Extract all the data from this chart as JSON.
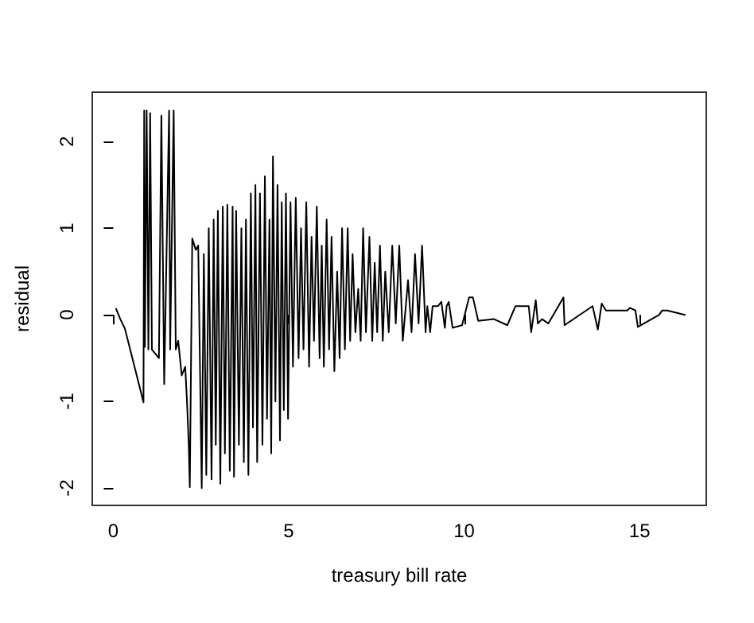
{
  "chart_data": {
    "type": "line",
    "xlabel": "treasury bill rate",
    "ylabel": "residual",
    "xlim": [
      -0.6,
      16.9
    ],
    "ylim": [
      -2.2,
      2.57
    ],
    "xticks": [
      0,
      5,
      10,
      15
    ],
    "yticks": [
      -2,
      -1,
      0,
      1,
      2
    ],
    "grid": false,
    "marker": "none",
    "line_style": "solid",
    "series": [
      {
        "color": "#000000",
        "x": [
          0.08,
          0.2,
          0.33,
          0.86,
          0.88,
          0.9,
          0.95,
          1.0,
          1.05,
          1.1,
          1.3,
          1.37,
          1.45,
          1.59,
          1.62,
          1.72,
          1.78,
          1.85,
          1.95,
          2.05,
          2.1,
          2.15,
          2.18,
          2.25,
          2.35,
          2.42,
          2.52,
          2.58,
          2.65,
          2.72,
          2.8,
          2.86,
          2.92,
          2.98,
          3.05,
          3.12,
          3.18,
          3.25,
          3.32,
          3.4,
          3.44,
          3.5,
          3.58,
          3.65,
          3.72,
          3.78,
          3.85,
          3.92,
          3.98,
          4.05,
          4.1,
          4.18,
          4.25,
          4.32,
          4.38,
          4.45,
          4.5,
          4.55,
          4.62,
          4.68,
          4.75,
          4.8,
          4.86,
          4.92,
          4.98,
          5.05,
          5.12,
          5.2,
          5.28,
          5.35,
          5.42,
          5.5,
          5.58,
          5.65,
          5.72,
          5.8,
          5.88,
          5.94,
          6.0,
          6.08,
          6.15,
          6.22,
          6.3,
          6.38,
          6.45,
          6.52,
          6.6,
          6.68,
          6.75,
          6.82,
          6.9,
          6.98,
          7.05,
          7.12,
          7.2,
          7.3,
          7.38,
          7.45,
          7.52,
          7.6,
          7.68,
          7.75,
          7.85,
          7.95,
          8.05,
          8.15,
          8.25,
          8.4,
          8.5,
          8.6,
          8.7,
          8.8,
          8.9,
          8.95,
          9.03,
          9.1,
          9.25,
          9.35,
          9.45,
          9.5,
          9.56,
          9.67,
          9.94,
          10.14,
          10.25,
          10.4,
          10.85,
          11.23,
          11.46,
          11.84,
          11.91,
          12.04,
          12.1,
          12.22,
          12.4,
          12.83,
          12.86,
          13.66,
          13.81,
          13.92,
          14.04,
          14.65,
          14.72,
          14.88,
          14.95,
          15.56,
          15.64,
          15.79,
          16.29
        ],
        "values": [
          0.07,
          -0.05,
          -0.16,
          -1.01,
          2.36,
          -0.37,
          2.36,
          -0.4,
          2.33,
          -0.4,
          -0.5,
          2.3,
          -0.8,
          2.36,
          -0.4,
          2.36,
          -0.4,
          -0.3,
          -0.7,
          -0.6,
          -1.0,
          -1.5,
          -1.99,
          0.88,
          0.75,
          0.8,
          -2.0,
          0.7,
          -1.85,
          1.0,
          -1.9,
          1.1,
          -1.5,
          1.2,
          -1.95,
          1.25,
          -1.6,
          1.27,
          -1.8,
          1.25,
          -1.87,
          1.2,
          -1.5,
          1.0,
          -1.7,
          1.1,
          -1.85,
          1.4,
          -1.3,
          1.5,
          -1.7,
          1.4,
          -1.5,
          1.6,
          -1.2,
          1.1,
          -1.6,
          1.83,
          -1.0,
          1.5,
          -1.45,
          1.3,
          -1.1,
          1.4,
          -1.2,
          1.3,
          -0.6,
          1.35,
          -0.5,
          1.0,
          -0.4,
          1.3,
          -0.6,
          0.9,
          -0.3,
          1.25,
          -0.5,
          0.8,
          -0.6,
          1.1,
          -0.4,
          0.9,
          -0.65,
          0.5,
          -0.5,
          1.0,
          -0.4,
          1.0,
          -0.3,
          0.7,
          -0.2,
          0.3,
          -0.3,
          1.0,
          -0.2,
          0.9,
          -0.3,
          0.6,
          -0.2,
          0.8,
          -0.3,
          0.5,
          -0.2,
          0.8,
          -0.1,
          0.8,
          -0.3,
          0.4,
          -0.2,
          0.7,
          -0.1,
          0.8,
          -0.2,
          0.1,
          -0.2,
          0.1,
          0.1,
          0.15,
          -0.15,
          0.1,
          0.15,
          -0.15,
          -0.12,
          0.2,
          0.2,
          -0.07,
          -0.05,
          -0.12,
          0.1,
          0.1,
          -0.2,
          0.17,
          -0.1,
          -0.05,
          -0.1,
          0.2,
          -0.12,
          0.1,
          -0.17,
          0.13,
          0.05,
          0.05,
          0.08,
          0.05,
          -0.14,
          0.0,
          0.05,
          0.05,
          0.0
        ]
      }
    ]
  }
}
